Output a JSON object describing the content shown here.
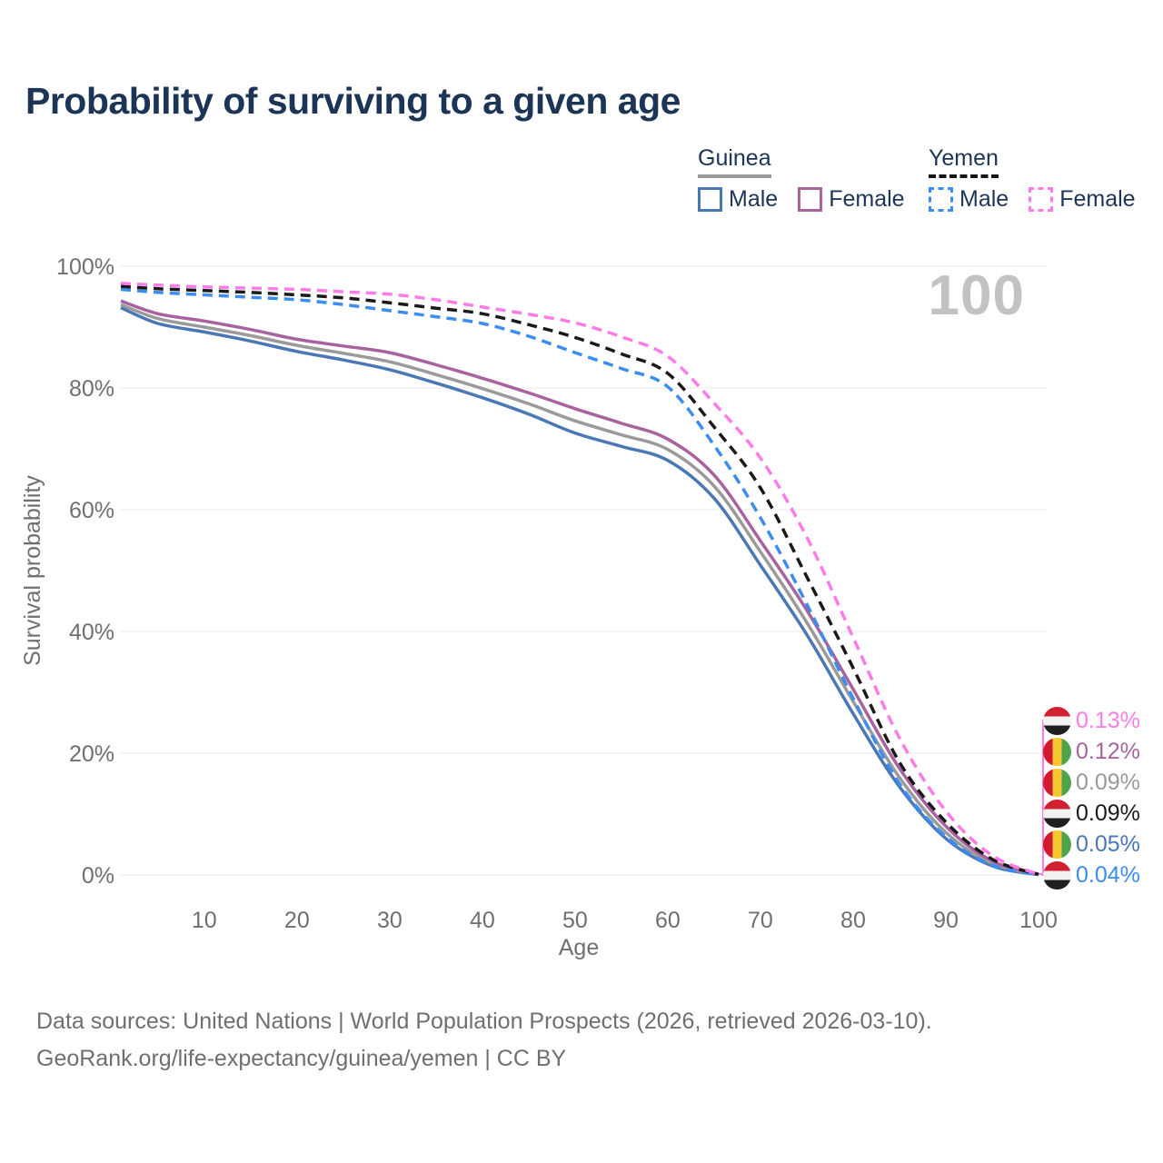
{
  "title": "Probability of surviving to a given age",
  "watermark": "100",
  "legend": {
    "groups": [
      {
        "name": "Guinea",
        "underline_style": "solid",
        "underline_color": "#9a9a9a",
        "items": [
          {
            "label": "Male",
            "color": "#4a78b5",
            "style": "solid"
          },
          {
            "label": "Female",
            "color": "#a8639f",
            "style": "solid"
          }
        ]
      },
      {
        "name": "Yemen",
        "underline_style": "dashed",
        "underline_color": "#161616",
        "items": [
          {
            "label": "Male",
            "color": "#3b8df2",
            "style": "dashed"
          },
          {
            "label": "Female",
            "color": "#ff7ce8",
            "style": "dashed"
          }
        ]
      }
    ]
  },
  "chart_data": {
    "type": "line",
    "title": "Probability of surviving to a given age",
    "xlabel": "Age",
    "ylabel": "Survival probability",
    "xlim": [
      1,
      100
    ],
    "ylim": [
      0,
      100
    ],
    "grid": "horizontal",
    "x_ticks": [
      10,
      20,
      30,
      40,
      50,
      60,
      70,
      80,
      90,
      100
    ],
    "y_ticks": [
      {
        "value": 0,
        "label": "0%"
      },
      {
        "value": 20,
        "label": "20%"
      },
      {
        "value": 40,
        "label": "40%"
      },
      {
        "value": 60,
        "label": "60%"
      },
      {
        "value": 80,
        "label": "80%"
      },
      {
        "value": 100,
        "label": "100%"
      }
    ],
    "x": [
      1,
      5,
      10,
      15,
      20,
      25,
      30,
      35,
      40,
      45,
      50,
      55,
      60,
      65,
      70,
      75,
      80,
      85,
      90,
      95,
      100
    ],
    "series": [
      {
        "name": "Guinea Male",
        "country": "Guinea",
        "sex": "Male",
        "color": "#4a78b5",
        "dash": false,
        "values": [
          93.2,
          90.6,
          89.2,
          87.7,
          86.0,
          84.6,
          83.0,
          80.8,
          78.4,
          75.7,
          72.6,
          70.4,
          68.1,
          61.9,
          50.9,
          39.5,
          26.5,
          14.5,
          6.0,
          1.5,
          0.05
        ]
      },
      {
        "name": "Guinea",
        "country": "Guinea",
        "sex": "Both",
        "color": "#9a9a9a",
        "dash": false,
        "values": [
          93.7,
          91.4,
          90.0,
          88.6,
          87.0,
          85.7,
          84.3,
          82.2,
          79.9,
          77.4,
          74.6,
          72.3,
          69.9,
          63.9,
          53.1,
          41.5,
          28.5,
          16.0,
          7.0,
          1.9,
          0.09
        ]
      },
      {
        "name": "Guinea Female",
        "country": "Guinea",
        "sex": "Female",
        "color": "#a8639f",
        "dash": false,
        "values": [
          94.3,
          92.2,
          91.0,
          89.6,
          88.0,
          86.9,
          85.8,
          83.8,
          81.6,
          79.2,
          76.6,
          74.2,
          71.6,
          65.7,
          54.9,
          43.5,
          30.5,
          17.5,
          8.0,
          2.3,
          0.12
        ]
      },
      {
        "name": "Yemen Male",
        "country": "Yemen",
        "sex": "Male",
        "color": "#3b8df2",
        "dash": true,
        "values": [
          96.2,
          95.7,
          95.3,
          94.9,
          94.5,
          93.7,
          92.7,
          91.7,
          90.6,
          88.5,
          85.8,
          83.2,
          80.2,
          70.6,
          58.7,
          44.5,
          29.0,
          15.0,
          6.3,
          1.6,
          0.04
        ]
      },
      {
        "name": "Yemen",
        "country": "Yemen",
        "sex": "Both",
        "color": "#1a1a1a",
        "dash": true,
        "values": [
          96.7,
          96.3,
          96.0,
          95.7,
          95.3,
          94.8,
          94.0,
          93.1,
          92.2,
          90.4,
          88.3,
          85.6,
          82.4,
          73.6,
          63.6,
          49.0,
          34.0,
          18.5,
          8.7,
          2.6,
          0.09
        ]
      },
      {
        "name": "Yemen Female",
        "country": "Yemen",
        "sex": "Female",
        "color": "#ff7ce8",
        "dash": true,
        "values": [
          97.2,
          96.9,
          96.6,
          96.4,
          96.2,
          95.8,
          95.4,
          94.5,
          93.3,
          92.1,
          90.7,
          88.4,
          85.2,
          77.5,
          68.5,
          55.5,
          39.0,
          22.5,
          10.5,
          3.2,
          0.13
        ]
      }
    ]
  },
  "right_labels": [
    {
      "flag": "yemen",
      "value": "0.13%",
      "color": "#ff7ce8"
    },
    {
      "flag": "guinea",
      "value": "0.12%",
      "color": "#a8639f"
    },
    {
      "flag": "guinea",
      "value": "0.09%",
      "color": "#9a9a9a"
    },
    {
      "flag": "yemen",
      "value": "0.09%",
      "color": "#1a1a1a"
    },
    {
      "flag": "guinea",
      "value": "0.05%",
      "color": "#4a78b5"
    },
    {
      "flag": "yemen",
      "value": "0.04%",
      "color": "#3b8df2"
    }
  ],
  "flags": {
    "yemen": {
      "direction": "to bottom",
      "stripes": [
        "#d32030",
        "#f2f2f2",
        "#1f1f22"
      ]
    },
    "guinea": {
      "direction": "to right",
      "stripes": [
        "#cf1b2b",
        "#f7c631",
        "#4da44a"
      ]
    }
  },
  "footer": {
    "line1": "Data sources: United Nations | World Population Prospects (2026, retrieved 2026-03-10).",
    "line2": "GeoRank.org/life-expectancy/guinea/yemen | CC BY"
  }
}
